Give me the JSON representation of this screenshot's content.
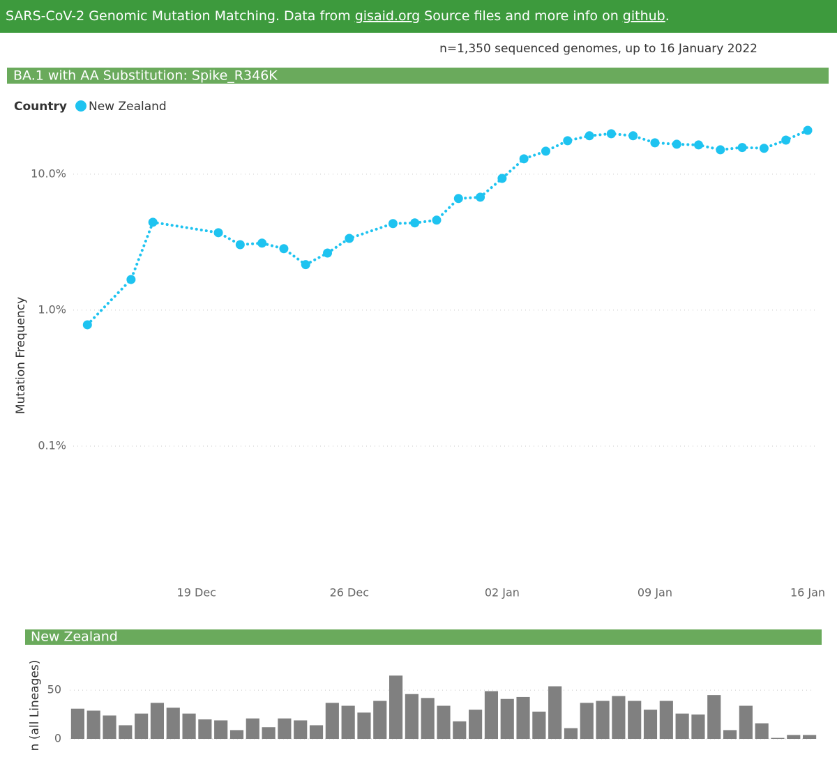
{
  "header": {
    "parts": [
      "SARS-CoV-2 Genomic Mutation Matching. Data from ",
      "gisaid.org",
      " Source files and more info on ",
      "github",
      "."
    ],
    "subtitle": "n=1,350 sequenced genomes, up to 16 January 2022"
  },
  "chart_data": [
    {
      "type": "line",
      "title": "BA.1 with AA Substitution: Spike_R346K",
      "legend_title": "Country",
      "ylabel": "Mutation Frequency",
      "log_scale": true,
      "grid": true,
      "ylim": [
        0.01,
        21.5
      ],
      "yticks": [
        {
          "value": 0.1,
          "label": "0.1%"
        },
        {
          "value": 1,
          "label": "1.0%"
        },
        {
          "value": 10,
          "label": "10.0%"
        }
      ],
      "xlim": [
        "13 Dec",
        "16 Jan"
      ],
      "xticks": [
        "19 Dec",
        "26 Dec",
        "02 Jan",
        "09 Jan",
        "16 Jan"
      ],
      "x": [
        "14 Dec",
        "16 Dec",
        "17 Dec",
        "20 Dec",
        "21 Dec",
        "22 Dec",
        "23 Dec",
        "24 Dec",
        "25 Dec",
        "26 Dec",
        "28 Dec",
        "29 Dec",
        "30 Dec",
        "31 Dec",
        "01 Jan",
        "02 Jan",
        "03 Jan",
        "04 Jan",
        "05 Jan",
        "06 Jan",
        "07 Jan",
        "08 Jan",
        "09 Jan",
        "10 Jan",
        "11 Jan",
        "12 Jan",
        "13 Jan",
        "14 Jan",
        "15 Jan",
        "16 Jan"
      ],
      "series": [
        {
          "name": "New Zealand",
          "color": "#1ec3f0",
          "values": [
            0.78,
            1.68,
            4.43,
            3.71,
            3.03,
            3.11,
            2.83,
            2.16,
            2.63,
            3.37,
            4.33,
            4.38,
            4.59,
            6.62,
            6.77,
            9.31,
            12.97,
            14.76,
            17.62,
            19.15,
            19.83,
            19.15,
            17.0,
            16.6,
            16.4,
            15.1,
            15.7,
            15.5,
            17.8,
            21.0
          ]
        }
      ]
    },
    {
      "type": "bar",
      "title": "New Zealand",
      "ylabel": "n (all Lineages)",
      "grid": true,
      "color": "#808080",
      "ylim": [
        0,
        68
      ],
      "yticks": [
        0,
        50
      ],
      "values": [
        31,
        29,
        24,
        14,
        26,
        37,
        32,
        26,
        20,
        19,
        9,
        21,
        12,
        21,
        19,
        14,
        37,
        34,
        27,
        39,
        65,
        46,
        42,
        34,
        18,
        30,
        49,
        41,
        43,
        28,
        54,
        11,
        37,
        39,
        44,
        39,
        30,
        39,
        26,
        25,
        45,
        9,
        34,
        16,
        1,
        4,
        4
      ]
    }
  ]
}
